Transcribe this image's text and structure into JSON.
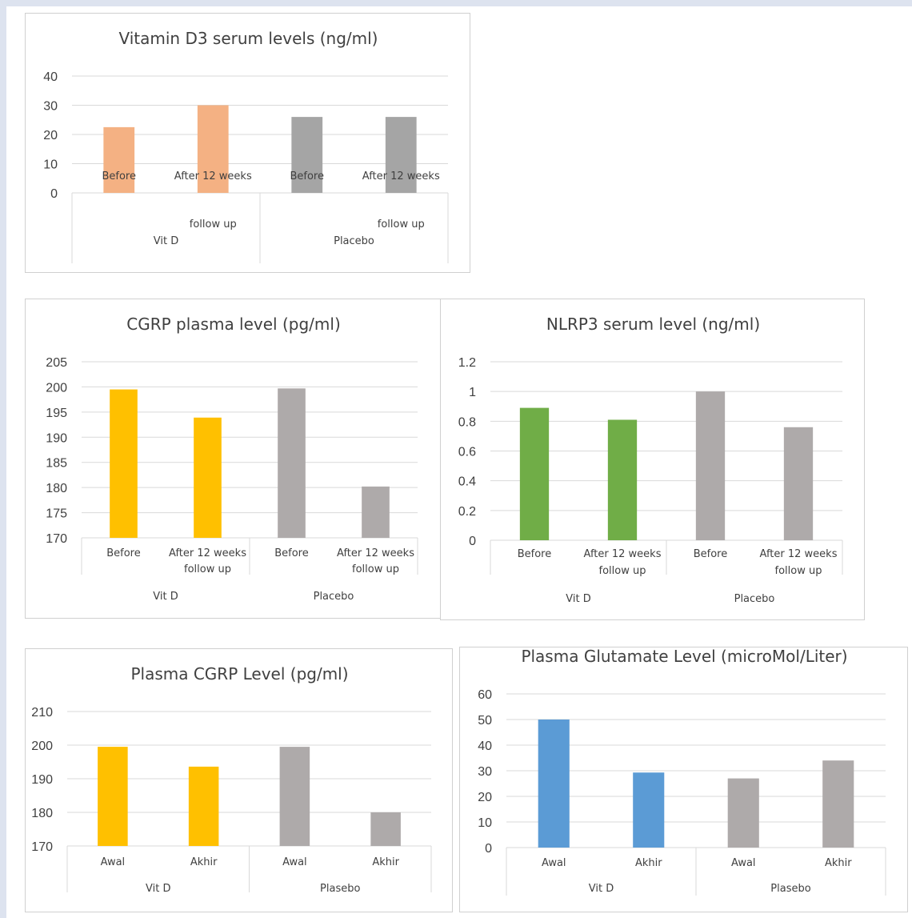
{
  "chart_data": [
    {
      "type": "bar",
      "title": "Vitamin D3 serum levels (ng/ml)",
      "ylim": [
        0,
        40
      ],
      "yticks": [
        "40",
        "30",
        "20",
        "10",
        "0"
      ],
      "categories": [
        "Before",
        "After 12 weeks follow up",
        "Before",
        "After 12 weeks follow up"
      ],
      "category_lines": [
        [
          "Before"
        ],
        [
          "After 12 weeks",
          "follow up"
        ],
        [
          "Before"
        ],
        [
          "After 12 weeks",
          "follow up"
        ]
      ],
      "groups": [
        "Vit D",
        "Placebo"
      ],
      "values": [
        22.5,
        30,
        26,
        26
      ],
      "colors": [
        "#f4b183",
        "#f4b183",
        "#a5a5a5",
        "#a5a5a5"
      ],
      "grid": true
    },
    {
      "type": "bar",
      "title": "CGRP plasma level (pg/ml)",
      "ylim": [
        170,
        205
      ],
      "yticks": [
        "205",
        "200",
        "195",
        "190",
        "185",
        "180",
        "175",
        "170"
      ],
      "categories": [
        "Before",
        "After 12 weeks follow up",
        "Before",
        "After 12 weeks follow up"
      ],
      "category_lines": [
        [
          "Before"
        ],
        [
          "After 12 weeks",
          "follow up"
        ],
        [
          "Before"
        ],
        [
          "After 12 weeks",
          "follow up"
        ]
      ],
      "groups": [
        "Vit D",
        "Placebo"
      ],
      "values": [
        199.5,
        193.9,
        199.7,
        180.2
      ],
      "colors": [
        "#ffc000",
        "#ffc000",
        "#aeaaaa",
        "#aeaaaa"
      ],
      "grid": true
    },
    {
      "type": "bar",
      "title": "NLRP3 serum level  (ng/ml)",
      "ylim": [
        0,
        1.2
      ],
      "yticks": [
        "1.2",
        "1",
        "0.8",
        "0.6",
        "0.4",
        "0.2",
        "0"
      ],
      "categories": [
        "Before",
        "After 12 weeks follow up",
        "Before",
        "After 12 weeks follow up"
      ],
      "category_lines": [
        [
          "Before"
        ],
        [
          "After 12 weeks",
          "follow up"
        ],
        [
          "Before"
        ],
        [
          "After 12 weeks",
          "follow up"
        ]
      ],
      "groups": [
        "Vit D",
        "Placebo"
      ],
      "values": [
        0.89,
        0.81,
        1.0,
        0.76
      ],
      "colors": [
        "#70ad47",
        "#70ad47",
        "#aeaaaa",
        "#aeaaaa"
      ],
      "grid": true
    },
    {
      "type": "bar",
      "title": "Plasma CGRP Level (pg/ml)",
      "ylim": [
        170,
        210
      ],
      "yticks": [
        "210",
        "200",
        "190",
        "180",
        "170"
      ],
      "categories": [
        "Awal",
        "Akhir",
        "Awal",
        "Akhir"
      ],
      "category_lines": [
        [
          "Awal"
        ],
        [
          "Akhir"
        ],
        [
          "Awal"
        ],
        [
          "Akhir"
        ]
      ],
      "groups": [
        "Vit D",
        "Plasebo"
      ],
      "values": [
        199.5,
        193.6,
        199.5,
        180.0
      ],
      "colors": [
        "#ffc000",
        "#ffc000",
        "#aeaaaa",
        "#aeaaaa"
      ],
      "grid": true
    },
    {
      "type": "bar",
      "title": "Plasma Glutamate Level (microMol/Liter)",
      "ylim": [
        0,
        60
      ],
      "yticks": [
        "60",
        "50",
        "40",
        "30",
        "20",
        "10",
        "0"
      ],
      "categories": [
        "Awal",
        "Akhir",
        "Awal",
        "Akhir"
      ],
      "category_lines": [
        [
          "Awal"
        ],
        [
          "Akhir"
        ],
        [
          "Awal"
        ],
        [
          "Akhir"
        ]
      ],
      "groups": [
        "Vit D",
        "Plasebo"
      ],
      "values": [
        50,
        29.3,
        27,
        34
      ],
      "colors": [
        "#5b9bd5",
        "#5b9bd5",
        "#aeaaaa",
        "#aeaaaa"
      ],
      "grid": true
    }
  ]
}
